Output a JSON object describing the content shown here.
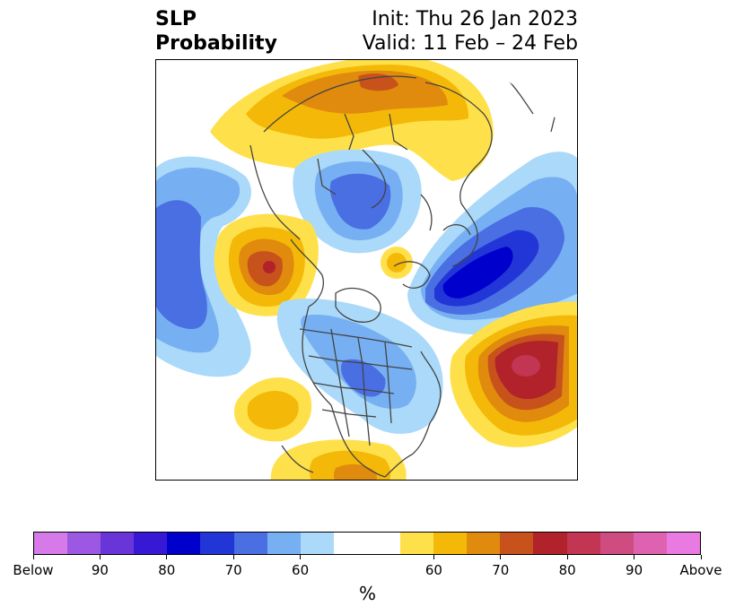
{
  "title": {
    "left_line1": "SLP",
    "left_line2": "Probability",
    "right_line1": "Init: Thu 26 Jan 2023",
    "right_line2": "Valid: 11 Feb – 24 Feb"
  },
  "colorbar": {
    "colors": [
      "#d57ae8",
      "#9c58e2",
      "#6a35d8",
      "#3718d4",
      "#0000cc",
      "#2236d8",
      "#4a6fe3",
      "#76b0f2",
      "#aad9f9",
      "#ffffff",
      "#fee14a",
      "#f4b908",
      "#e08a0e",
      "#c7521b",
      "#b1222a",
      "#c23553",
      "#cf4c81",
      "#df62b0",
      "#e87ae1"
    ],
    "tick_labels": [
      "Below",
      "90",
      "80",
      "70",
      "60",
      "60",
      "70",
      "80",
      "90",
      "Above"
    ],
    "unit": "%"
  },
  "map": {
    "projection": "north-polar-stereographic",
    "field": "sea-level-pressure-probability",
    "features": [
      {
        "name": "Greenland / North Atlantic low anomaly",
        "category": "Below",
        "peak": "80"
      },
      {
        "name": "Arctic Siberia low anomaly",
        "category": "Below",
        "peak": "70"
      },
      {
        "name": "Eurasia high anomaly",
        "category": "Above",
        "peak": "70"
      },
      {
        "name": "North Pacific high anomaly",
        "category": "Above",
        "peak": "80"
      },
      {
        "name": "Central North Pacific low anomaly",
        "category": "Below",
        "peak": "70"
      },
      {
        "name": "Subtropical Atlantic high anomaly",
        "category": "Above",
        "peak": "85"
      },
      {
        "name": "Eastern United States low anomaly",
        "category": "Below",
        "peak": "70"
      },
      {
        "name": "Eastern Pacific high anomaly",
        "category": "Above",
        "peak": "60"
      },
      {
        "name": "Gulf of Mexico high anomaly",
        "category": "Above",
        "peak": "65"
      }
    ]
  }
}
